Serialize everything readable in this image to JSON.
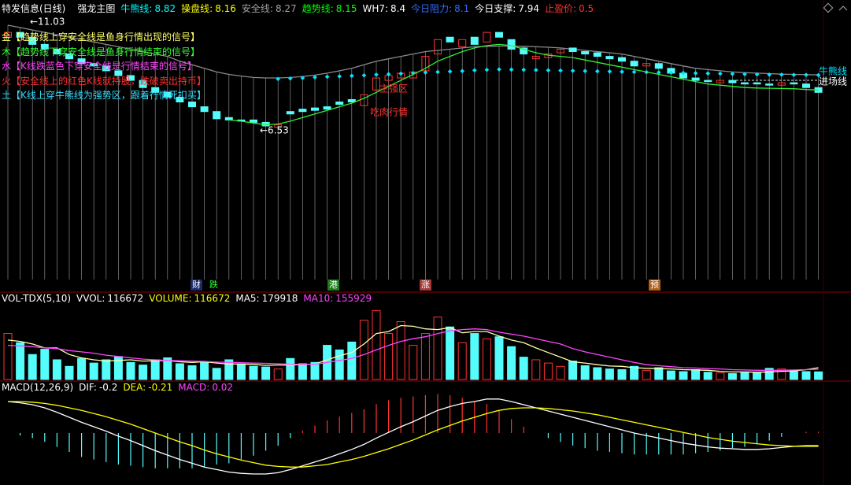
{
  "header": {
    "title": "特发信息(日线)",
    "indicator_name": "强龙主图",
    "indicators": [
      {
        "label": "牛熊线:",
        "value": 8.82,
        "color": "#00ffff"
      },
      {
        "label": "操盘线:",
        "value": 8.16,
        "color": "#ffff00"
      },
      {
        "label": "安全线:",
        "value": 8.27,
        "color": "#a0a0a0"
      },
      {
        "label": "趋势线:",
        "value": 8.15,
        "color": "#00ff00"
      },
      {
        "label": "WH7:",
        "value": 8.4,
        "color": "#ffffff"
      },
      {
        "label": "今日阻力:",
        "value": 8.1,
        "color": "#2f6cff"
      },
      {
        "label": "今日支撑:",
        "value": 7.94,
        "color": "#ffffff"
      },
      {
        "label": "止盈价:",
        "value": 0.5,
        "color": "#ff3030"
      }
    ]
  },
  "notes": [
    {
      "text": "金【趋势线上穿安全线是鱼身行情出现的信号】",
      "color": "#ffff66"
    },
    {
      "text": "木【趋势线下穿安全线是鱼身行情结束的信号】",
      "color": "#33ff33"
    },
    {
      "text": "水【K线跌蓝色下穿安全线是行情结束的信号】",
      "color": "#ff44ff"
    },
    {
      "text": "火【安全线上的红色K线就持股，跌破卖出持币】",
      "color": "#ff3030"
    },
    {
      "text": "土【K线上穿牛熊线为强势区，跟着行情死扣买】",
      "color": "#33ddff"
    }
  ],
  "tags": [
    {
      "text": "财",
      "color": "#ffffff",
      "background": "#1a2a6a"
    },
    {
      "text": "跌",
      "color": "#33ff33",
      "background": "#000000"
    },
    {
      "text": "港",
      "color": "#ffffff",
      "background": "#1c7a1c"
    },
    {
      "text": "涨",
      "color": "#ffffff",
      "background": "#a33a3a"
    },
    {
      "text": "预",
      "color": "#ffffff",
      "background": "#b0601a"
    }
  ],
  "chart_data": [
    {
      "type": "candlestick",
      "ylim": [
        0.3,
        11.95
      ],
      "up_color": "#ff3232",
      "down_color": "#54fcfc",
      "open": [
        10.4,
        10.6,
        10.4,
        10.1,
        9.9,
        9.7,
        9.5,
        9.3,
        9.2,
        9.0,
        8.8,
        8.6,
        8.3,
        8.1,
        7.9,
        7.7,
        7.5,
        7.3,
        7.05,
        6.95,
        6.95,
        6.85,
        6.65,
        7.3,
        7.4,
        7.45,
        7.5,
        7.7,
        7.8,
        7.55,
        8.2,
        8.6,
        8.7,
        8.7,
        9.0,
        9.7,
        10.4,
        10.0,
        10.4,
        10.2,
        10.6,
        10.3,
        9.95,
        9.5,
        9.55,
        9.75,
        9.95,
        9.8,
        9.75,
        9.6,
        9.55,
        9.4,
        9.2,
        9.3,
        9.1,
        8.9,
        8.7,
        8.6,
        8.5,
        8.6,
        8.5,
        8.5,
        8.45,
        8.4,
        8.5,
        8.45,
        8.3
      ],
      "close": [
        10.6,
        10.4,
        10.1,
        9.9,
        9.7,
        9.5,
        9.3,
        9.2,
        9.0,
        8.8,
        8.6,
        8.3,
        8.1,
        7.9,
        7.7,
        7.5,
        7.3,
        7.0,
        6.95,
        6.9,
        6.85,
        6.7,
        6.75,
        7.2,
        7.3,
        7.35,
        7.4,
        7.6,
        7.7,
        8.0,
        8.7,
        8.8,
        8.9,
        8.95,
        9.6,
        10.3,
        10.2,
        10.3,
        10.1,
        10.6,
        10.4,
        9.9,
        9.7,
        9.6,
        9.7,
        9.9,
        9.8,
        9.7,
        9.6,
        9.5,
        9.4,
        9.2,
        9.3,
        9.1,
        8.9,
        8.7,
        8.6,
        8.55,
        8.6,
        8.5,
        8.45,
        8.45,
        8.4,
        8.5,
        8.45,
        8.3,
        8.1
      ],
      "overlays": [
        {
          "style": "stems",
          "color": "#8a8a8a",
          "values": [
            10.9,
            10.8,
            10.7,
            10.6,
            10.5,
            10.4,
            10.3,
            10.2,
            10.1,
            10.0,
            9.9,
            9.8,
            9.7,
            9.6,
            9.4,
            9.25,
            9.1,
            8.95,
            8.85,
            8.78,
            8.72,
            8.7,
            8.7,
            8.72,
            8.76,
            8.82,
            8.9,
            9.0,
            9.1,
            9.25,
            9.4,
            9.5,
            9.6,
            9.7,
            9.8,
            9.85,
            9.9,
            9.95,
            10.0,
            10.02,
            10.03,
            10.03,
            10.02,
            10.0,
            9.98,
            9.95,
            9.9,
            9.85,
            9.8,
            9.75,
            9.7,
            9.6,
            9.5,
            9.4,
            9.3,
            9.2,
            9.1,
            9.05,
            9.0,
            8.95,
            8.92,
            8.9,
            8.88,
            8.86,
            8.85,
            8.84,
            8.83
          ]
        },
        {
          "style": "dots",
          "color": "#00e5ff",
          "values": [
            null,
            null,
            null,
            null,
            null,
            null,
            null,
            null,
            null,
            null,
            null,
            null,
            null,
            null,
            null,
            null,
            null,
            null,
            null,
            null,
            null,
            null,
            8.66,
            8.68,
            8.7,
            8.73,
            8.75,
            8.77,
            8.79,
            8.81,
            8.84,
            8.86,
            8.88,
            8.9,
            8.93,
            8.95,
            8.97,
            8.99,
            9.02,
            9.04,
            9.06,
            9.05,
            9.04,
            9.03,
            9.02,
            9.01,
            9.0,
            8.99,
            8.98,
            8.97,
            8.96,
            8.95,
            8.94,
            8.93,
            8.92,
            8.91,
            8.9,
            8.89,
            8.88,
            8.87,
            8.86,
            8.85,
            8.84,
            8.84,
            8.83,
            8.83,
            8.82
          ]
        },
        {
          "style": "line",
          "color": "#33ee33",
          "values": [
            null,
            null,
            null,
            null,
            null,
            null,
            null,
            null,
            null,
            null,
            null,
            null,
            null,
            null,
            null,
            null,
            null,
            null,
            6.95,
            6.9,
            6.82,
            6.75,
            6.78,
            6.9,
            7.05,
            7.2,
            7.35,
            7.5,
            7.65,
            7.85,
            8.1,
            8.35,
            8.6,
            8.85,
            9.1,
            9.4,
            9.6,
            9.8,
            9.95,
            10.05,
            10.1,
            10.05,
            9.9,
            9.75,
            9.65,
            9.6,
            9.55,
            9.45,
            9.35,
            9.25,
            9.15,
            9.05,
            8.95,
            8.85,
            8.75,
            8.65,
            8.55,
            8.45,
            8.4,
            8.35,
            8.3,
            8.28,
            8.27,
            8.26,
            8.25,
            8.22,
            8.2
          ]
        }
      ],
      "annotations": [
        {
          "text": "←11.03",
          "color": "#ffffff"
        },
        {
          "text": "←6.53",
          "color": "#ffffff"
        },
        {
          "text": "主强区",
          "color": "#ff3030"
        },
        {
          "text": "吃肉行情",
          "color": "#ff3030"
        },
        {
          "text": "牛熊线",
          "color": "#00e5ff"
        },
        {
          "text": "进场线",
          "color": "#ffffff"
        }
      ]
    },
    {
      "type": "volume",
      "title": "VOL-TDX(5,10)",
      "ylim": [
        0,
        1150000
      ],
      "stats": [
        {
          "label": "VVOL:",
          "value": 116672,
          "color": "#ffffff"
        },
        {
          "label": "VOLUME:",
          "value": 116672,
          "color": "#ffff00"
        },
        {
          "label": "MA5:",
          "value": 179918,
          "color": "#ffffff"
        },
        {
          "label": "MA10:",
          "value": 155929,
          "color": "#ff44ff"
        }
      ],
      "values": [
        700000,
        560000,
        380000,
        460000,
        300000,
        200000,
        320000,
        250000,
        300000,
        350000,
        260000,
        220000,
        300000,
        330000,
        240000,
        210000,
        270000,
        170000,
        300000,
        230000,
        200000,
        190000,
        160000,
        320000,
        240000,
        260000,
        520000,
        450000,
        570000,
        900000,
        1050000,
        700000,
        880000,
        520000,
        700000,
        950000,
        800000,
        560000,
        700000,
        620000,
        650000,
        500000,
        340000,
        300000,
        250000,
        200000,
        280000,
        210000,
        180000,
        160000,
        150000,
        200000,
        140000,
        180000,
        130000,
        120000,
        150000,
        110000,
        100000,
        90000,
        110000,
        100000,
        170000,
        160000,
        130000,
        120000,
        116672
      ],
      "lines": [
        {
          "color": "#ffffaa",
          "values": [
            600000,
            580000,
            540000,
            480000,
            480000,
            380000,
            330000,
            300000,
            280000,
            290000,
            300000,
            280000,
            285000,
            290000,
            270000,
            260000,
            270000,
            250000,
            235000,
            235000,
            230000,
            215000,
            220000,
            220000,
            225000,
            235000,
            300000,
            360000,
            410000,
            540000,
            700000,
            730000,
            820000,
            810000,
            770000,
            760000,
            790000,
            710000,
            730000,
            730000,
            660000,
            600000,
            560000,
            480000,
            410000,
            340000,
            270000,
            250000,
            225000,
            205000,
            200000,
            180000,
            170000,
            165000,
            160000,
            150000,
            145000,
            140000,
            125000,
            115000,
            115000,
            110000,
            115000,
            125000,
            130000,
            150000,
            179918
          ]
        },
        {
          "color": "#ff44ff",
          "values": [
            520000,
            510000,
            500000,
            480000,
            470000,
            440000,
            420000,
            400000,
            370000,
            350000,
            330000,
            310000,
            300000,
            290000,
            285000,
            280000,
            275000,
            265000,
            260000,
            255000,
            250000,
            245000,
            240000,
            232000,
            230000,
            232000,
            260000,
            290000,
            320000,
            380000,
            450000,
            520000,
            580000,
            620000,
            650000,
            700000,
            740000,
            760000,
            770000,
            760000,
            720000,
            690000,
            660000,
            620000,
            580000,
            540000,
            470000,
            420000,
            380000,
            340000,
            300000,
            260000,
            225000,
            210000,
            195000,
            180000,
            175000,
            165000,
            160000,
            150000,
            145000,
            140000,
            140000,
            140000,
            145000,
            150000,
            155929
          ]
        }
      ]
    },
    {
      "type": "macd",
      "title": "MACD(12,26,9)",
      "ylim": [
        -0.75,
        0.7
      ],
      "stats": [
        {
          "label": "DIF:",
          "value": -0.2,
          "color": "#ffffff"
        },
        {
          "label": "DEA:",
          "value": -0.21,
          "color": "#ffff00"
        },
        {
          "label": "MACD:",
          "value": 0.02,
          "color": "#ff44ff"
        }
      ],
      "dif": [
        0.5,
        0.48,
        0.45,
        0.4,
        0.33,
        0.25,
        0.17,
        0.1,
        0.03,
        -0.05,
        -0.12,
        -0.2,
        -0.28,
        -0.35,
        -0.42,
        -0.48,
        -0.54,
        -0.58,
        -0.62,
        -0.64,
        -0.65,
        -0.65,
        -0.63,
        -0.58,
        -0.52,
        -0.46,
        -0.4,
        -0.33,
        -0.26,
        -0.18,
        -0.08,
        0.01,
        0.1,
        0.18,
        0.27,
        0.36,
        0.42,
        0.47,
        0.5,
        0.54,
        0.54,
        0.5,
        0.45,
        0.4,
        0.35,
        0.3,
        0.25,
        0.2,
        0.15,
        0.1,
        0.05,
        0.0,
        -0.04,
        -0.08,
        -0.12,
        -0.16,
        -0.19,
        -0.22,
        -0.24,
        -0.25,
        -0.26,
        -0.26,
        -0.25,
        -0.23,
        -0.21,
        -0.2,
        -0.2
      ],
      "dea": [
        0.5,
        0.5,
        0.49,
        0.47,
        0.44,
        0.4,
        0.36,
        0.31,
        0.26,
        0.2,
        0.14,
        0.07,
        0.0,
        -0.07,
        -0.14,
        -0.2,
        -0.27,
        -0.33,
        -0.38,
        -0.43,
        -0.47,
        -0.51,
        -0.53,
        -0.54,
        -0.54,
        -0.52,
        -0.5,
        -0.46,
        -0.42,
        -0.37,
        -0.31,
        -0.25,
        -0.18,
        -0.11,
        -0.03,
        0.05,
        0.12,
        0.19,
        0.25,
        0.31,
        0.36,
        0.39,
        0.4,
        0.4,
        0.39,
        0.37,
        0.35,
        0.32,
        0.29,
        0.25,
        0.21,
        0.17,
        0.13,
        0.09,
        0.05,
        0.01,
        -0.03,
        -0.07,
        -0.1,
        -0.13,
        -0.15,
        -0.17,
        -0.19,
        -0.2,
        -0.21,
        -0.21,
        -0.21
      ],
      "macd": [
        0,
        -0.04,
        -0.08,
        -0.14,
        -0.22,
        -0.3,
        -0.38,
        -0.42,
        -0.46,
        -0.5,
        -0.52,
        -0.54,
        -0.56,
        -0.56,
        -0.56,
        -0.56,
        -0.54,
        -0.5,
        -0.48,
        -0.42,
        -0.36,
        -0.28,
        -0.2,
        -0.08,
        0.04,
        0.12,
        0.2,
        0.26,
        0.32,
        0.38,
        0.46,
        0.52,
        0.56,
        0.58,
        0.6,
        0.62,
        0.6,
        0.56,
        0.5,
        0.46,
        0.36,
        0.22,
        0.1,
        0.0,
        -0.08,
        -0.14,
        -0.2,
        -0.24,
        -0.28,
        -0.3,
        -0.32,
        -0.34,
        -0.34,
        -0.34,
        -0.34,
        -0.34,
        -0.32,
        -0.3,
        -0.28,
        -0.24,
        -0.22,
        -0.18,
        -0.12,
        -0.06,
        0.0,
        0.02,
        0.02
      ],
      "up_color": "#ff3232",
      "down_color": "#54fcfc",
      "dif_color": "#ffffff",
      "dea_color": "#ffff00"
    }
  ]
}
